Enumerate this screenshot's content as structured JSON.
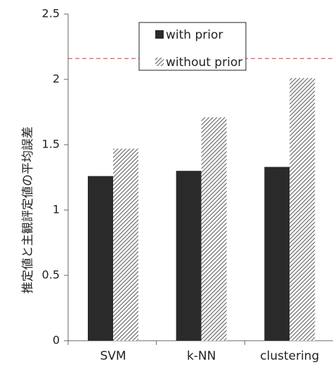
{
  "chart_data": {
    "type": "bar",
    "title": "",
    "xlabel": "",
    "ylabel": "推定値と主観評定値の平均誤差",
    "categories": [
      "SVM",
      "k-NN",
      "clustering"
    ],
    "series": [
      {
        "name": "with prior",
        "values": [
          1.26,
          1.3,
          1.33
        ],
        "color": "#2a2a2a",
        "pattern": "solid"
      },
      {
        "name": "without prior",
        "values": [
          1.47,
          1.71,
          2.01
        ],
        "color": "#555555",
        "pattern": "diagonal-hatch"
      }
    ],
    "ylim": [
      0,
      2.5
    ],
    "yticks": [
      {
        "value": 0,
        "label": "0"
      },
      {
        "value": 0.5,
        "label": "0.5"
      },
      {
        "value": 1,
        "label": "1"
      },
      {
        "value": 1.5,
        "label": "1.5"
      },
      {
        "value": 2,
        "label": "2"
      },
      {
        "value": 2.5,
        "label": "2.5"
      }
    ],
    "reference_line": {
      "value": 2.16,
      "style": "dashed",
      "color": "#e03030"
    },
    "grid": false,
    "legend": {
      "position": "top-center"
    }
  }
}
